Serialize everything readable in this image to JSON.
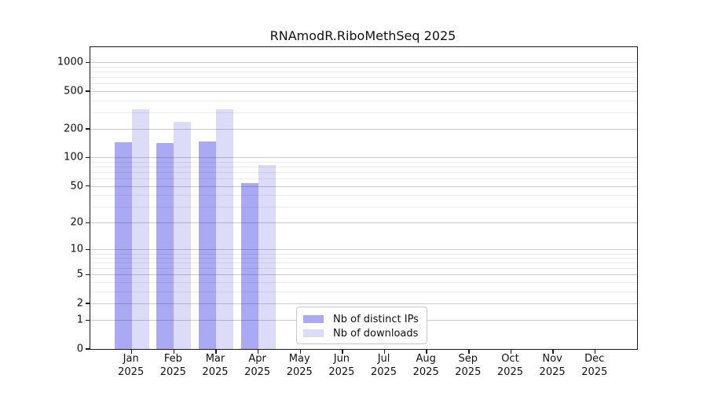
{
  "title": "RNAmodR.RiboMethSeq 2025",
  "chart_data": {
    "type": "bar",
    "title": "RNAmodR.RiboMethSeq 2025",
    "xlabel": "",
    "ylabel": "",
    "yscale": "log1p",
    "ylim": [
      0,
      1480
    ],
    "yticks": [
      0,
      1,
      2,
      5,
      10,
      20,
      50,
      100,
      200,
      500,
      1000
    ],
    "minor_gridlines": [
      3,
      4,
      6,
      7,
      8,
      9,
      30,
      40,
      60,
      70,
      80,
      90,
      300,
      400,
      600,
      700,
      800,
      900
    ],
    "grid": "horizontal major+minor, drawn over bars",
    "legend_position": "inside bottom-center",
    "categories": [
      "Jan 2025",
      "Feb 2025",
      "Mar 2025",
      "Apr 2025",
      "May 2025",
      "Jun 2025",
      "Jul 2025",
      "Aug 2025",
      "Sep 2025",
      "Oct 2025",
      "Nov 2025",
      "Dec 2025"
    ],
    "series": [
      {
        "name": "Nb of distinct IPs",
        "color": "#a9a9f4",
        "values": [
          145,
          142,
          147,
          54,
          0,
          0,
          0,
          0,
          0,
          0,
          0,
          0
        ]
      },
      {
        "name": "Nb of downloads",
        "color": "#dcdcf8",
        "values": [
          320,
          240,
          325,
          84,
          0,
          0,
          0,
          0,
          0,
          0,
          0,
          0
        ]
      }
    ]
  }
}
